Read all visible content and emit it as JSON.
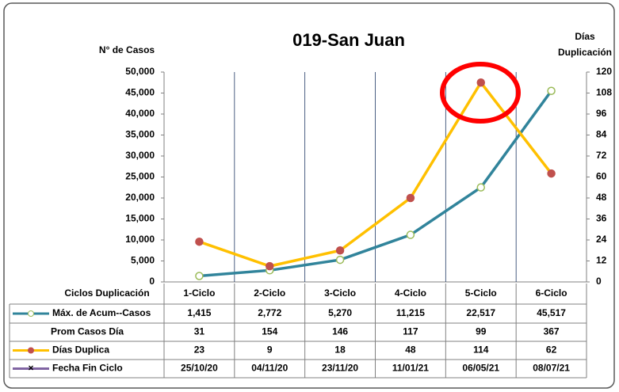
{
  "chart_data": {
    "type": "line",
    "title": "019-San Juan",
    "ylabel": "N° de Casos",
    "y2label": [
      "Días",
      "Duplicación"
    ],
    "xlabel": "Ciclos Duplicación",
    "categories": [
      "1-Ciclo",
      "2-Ciclo",
      "3-Ciclo",
      "4-Ciclo",
      "5-Ciclo",
      "6-Ciclo"
    ],
    "ylim": [
      0,
      50000
    ],
    "yticks": [
      0,
      {
        "value": 5000,
        "label": "5,000"
      },
      {
        "value": 10000,
        "label": "10,000"
      },
      {
        "value": 15000,
        "label": "15,000"
      },
      {
        "value": 20000,
        "label": "20,000"
      },
      {
        "value": 25000,
        "label": "25,000"
      },
      {
        "value": 30000,
        "label": "30,000"
      },
      {
        "value": 35000,
        "label": "35,000"
      },
      {
        "value": 40000,
        "label": "40,000"
      },
      {
        "value": 45000,
        "label": "45,000"
      },
      {
        "value": 50000,
        "label": "50,000"
      }
    ],
    "y2lim": [
      0,
      120
    ],
    "y2ticks": [
      0,
      12,
      24,
      36,
      48,
      60,
      72,
      84,
      96,
      108,
      120
    ],
    "grid": true,
    "series": [
      {
        "name": "Máx. de Acum--Casos",
        "color": "#31849b",
        "marker_color": "#9bbb59",
        "values": [
          1415,
          2772,
          5270,
          11215,
          22517,
          45517
        ],
        "value_labels": [
          "1,415",
          "2,772",
          "5,270",
          "11,215",
          "22,517",
          "45,517"
        ]
      },
      {
        "name": "Prom Casos Día",
        "values": [
          31,
          154,
          146,
          117,
          99,
          367
        ]
      },
      {
        "name": "Días Duplica",
        "color": "#ffc000",
        "marker_color": "#c0504d",
        "axis": "y2",
        "values": [
          23,
          9,
          18,
          48,
          114,
          62
        ]
      },
      {
        "name": "Fecha Fin Ciclo",
        "color": "#8064a2",
        "values": [
          "25/10/20",
          "04/11/20",
          "23/11/20",
          "11/01/21",
          "06/05/21",
          "08/07/21"
        ]
      }
    ]
  }
}
